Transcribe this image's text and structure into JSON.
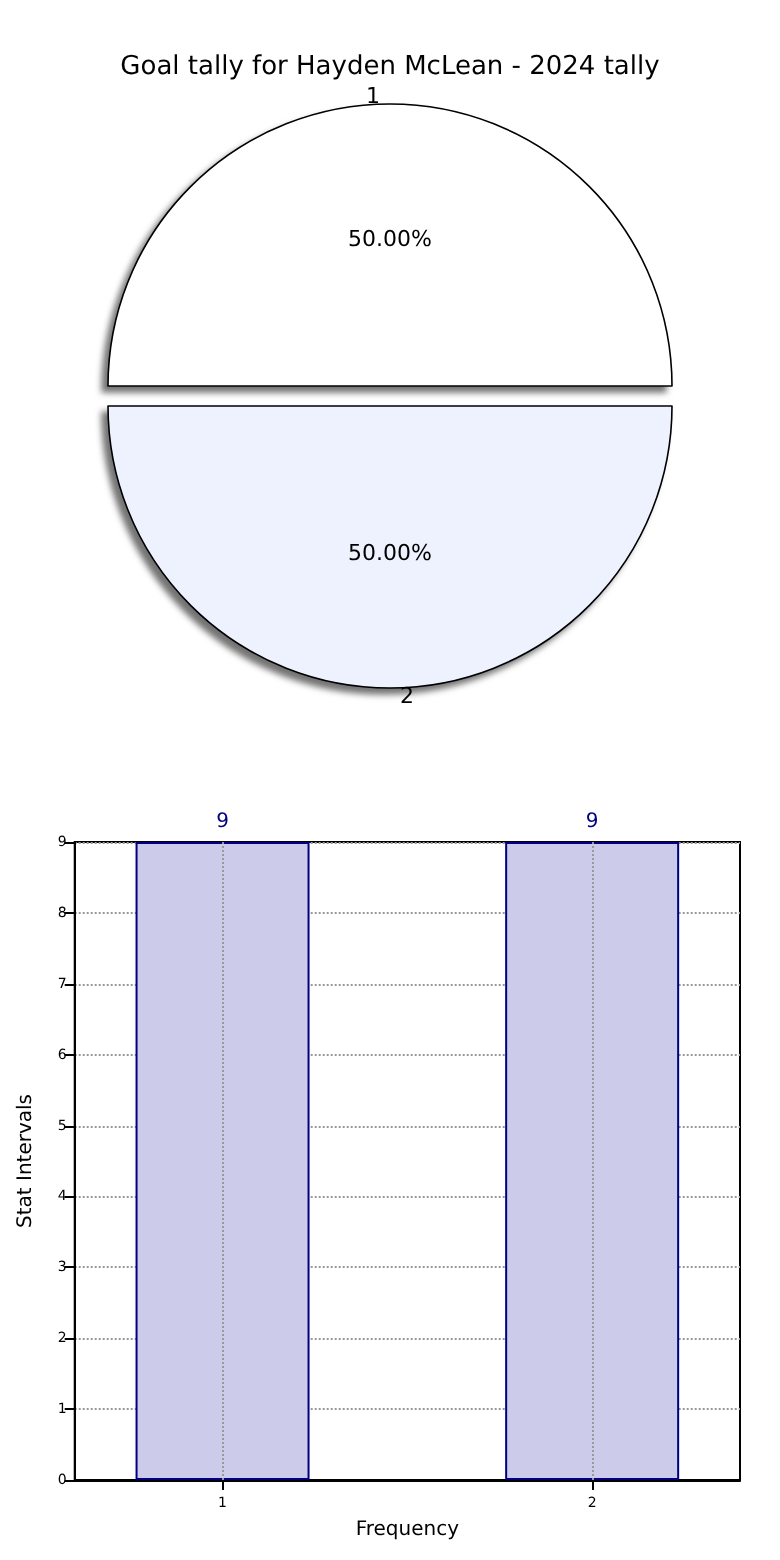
{
  "chart_data": [
    {
      "type": "pie",
      "title": "Goal tally for Hayden McLean - 2024 tally",
      "categories": [
        "1",
        "2"
      ],
      "values": [
        50,
        50
      ],
      "colors": [
        "#ffffff",
        "#eef2ff"
      ],
      "value_labels": [
        "50.00%",
        "50.00%"
      ]
    },
    {
      "type": "bar",
      "xlabel": "Frequency",
      "ylabel": "Stat Intervals",
      "x": [
        1,
        2
      ],
      "values": [
        9,
        9
      ],
      "color": "#ccccea",
      "xlim": [
        0.6,
        2.4
      ],
      "xticks": [
        1,
        2
      ],
      "ylim": [
        0,
        9
      ],
      "yticks": [
        0,
        1,
        2,
        3,
        4,
        5,
        6,
        7,
        8,
        9
      ],
      "grid": true,
      "data_labels": true
    }
  ]
}
